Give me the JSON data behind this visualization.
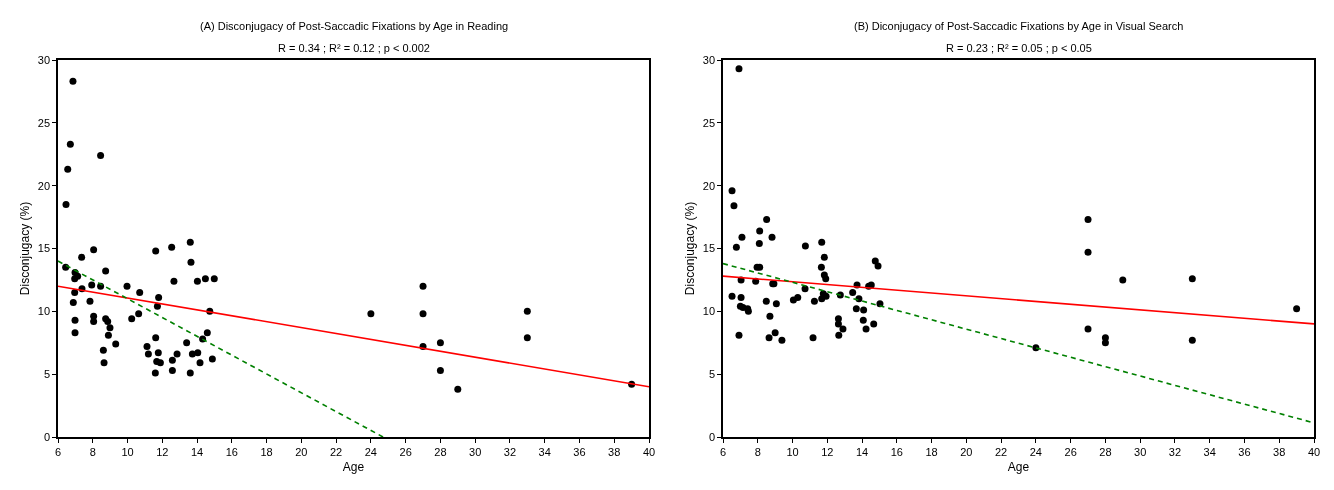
{
  "chart_data": [
    {
      "type": "scatter",
      "title": "(A) Disconjugacy of Post-Saccadic Fixations by Age in Reading",
      "subtitle": "R = 0.34 ; R² = 0.12 ; p < 0.002",
      "xlabel": "Age",
      "ylabel": "Disconjugacy (%)",
      "xlim": [
        6,
        40
      ],
      "ylim": [
        0,
        30
      ],
      "xticks": [
        6,
        8,
        10,
        12,
        14,
        16,
        18,
        20,
        22,
        24,
        26,
        28,
        30,
        32,
        34,
        36,
        38,
        40
      ],
      "yticks": [
        0,
        5,
        10,
        15,
        20,
        25,
        30
      ],
      "series": [
        {
          "type": "scatter",
          "marker": "circle",
          "color": "#000000",
          "x": [
            6.86,
            6.71,
            6.56,
            6.46,
            8.45,
            6.44,
            6.98,
            7.13,
            6.96,
            7.36,
            8.05,
            8.74,
            7.38,
            6.96,
            6.88,
            7.94,
            8.45,
            7.84,
            6.98,
            6.98,
            8.05,
            8.05,
            8.74,
            8.86,
            8.99,
            8.9,
            9.32,
            8.61,
            8.65,
            9.97,
            10.7,
            10.24,
            10.64,
            11.62,
            11.79,
            11.72,
            12.54,
            12.67,
            13.61,
            13.65,
            14.02,
            14.48,
            14.99,
            14.73,
            14.59,
            14.32,
            13.4,
            11.62,
            11.12,
            11.2,
            11.77,
            11.68,
            11.89,
            11.6,
            12.58,
            12.85,
            12.58,
            13.73,
            14.04,
            14.17,
            13.61,
            14.88,
            24,
            27,
            27,
            27,
            28,
            28,
            29,
            33,
            33,
            39
          ],
          "values": [
            28.3,
            23.3,
            21.3,
            18.5,
            22.4,
            13.5,
            13.1,
            12.8,
            12.6,
            14.3,
            14.9,
            13.2,
            11.8,
            11.5,
            10.7,
            12.1,
            12.0,
            10.8,
            9.3,
            8.3,
            9.6,
            9.2,
            9.4,
            9.2,
            8.7,
            8.1,
            7.4,
            6.9,
            5.9,
            12.0,
            11.5,
            9.4,
            9.8,
            14.8,
            11.1,
            10.4,
            15.1,
            12.4,
            15.5,
            13.9,
            12.4,
            12.6,
            12.6,
            10.0,
            8.3,
            7.8,
            7.5,
            7.9,
            7.2,
            6.6,
            6.7,
            6.0,
            5.9,
            5.1,
            6.1,
            6.6,
            5.3,
            6.6,
            6.7,
            5.9,
            5.1,
            6.2,
            9.8,
            12.0,
            9.8,
            7.2,
            7.5,
            5.3,
            3.8,
            10.0,
            7.9,
            4.2
          ]
        },
        {
          "type": "line",
          "line_style": "solid",
          "color": "#ff0000",
          "x": [
            6,
            40
          ],
          "values": [
            12.0,
            4.0
          ]
        },
        {
          "type": "line",
          "line_style": "dashed",
          "color": "#008000",
          "x": [
            6,
            24.7
          ],
          "values": [
            14.0,
            0
          ]
        }
      ]
    },
    {
      "type": "scatter",
      "title": "(B) Diconjugacy of Post-Saccadic Fixations by Age in Visual Search",
      "subtitle": "R = 0.23 ; R² = 0.05 ; p < 0.05",
      "xlabel": "Age",
      "ylabel": "Disconjugacy (%)",
      "xlim": [
        6,
        40
      ],
      "ylim": [
        0,
        30
      ],
      "xticks": [
        6,
        8,
        10,
        12,
        14,
        16,
        18,
        20,
        22,
        24,
        26,
        28,
        30,
        32,
        34,
        36,
        38,
        40
      ],
      "yticks": [
        0,
        5,
        10,
        15,
        20,
        25,
        30
      ],
      "series": [
        {
          "type": "scatter",
          "marker": "circle",
          "color": "#000000",
          "x": [
            6.92,
            6.52,
            6.63,
            8.51,
            8.11,
            8.82,
            7.09,
            6.77,
            8.09,
            10.74,
            11.68,
            11.83,
            11.66,
            11.83,
            11.91,
            7.96,
            8.11,
            7.04,
            7.88,
            8.86,
            8.93,
            14.76,
            14.92,
            6.52,
            7.04,
            7.0,
            7.15,
            7.42,
            7.46,
            8.49,
            8.7,
            9.07,
            6.92,
            8.65,
            9.0,
            9.39,
            10.05,
            10.3,
            10.72,
            11.26,
            11.68,
            11.93,
            11.77,
            12.75,
            11.18,
            12.64,
            12.64,
            12.9,
            12.66,
            13.46,
            13.71,
            13.82,
            13.67,
            14.09,
            14.07,
            14.23,
            14.38,
            14.53,
            14.67,
            15.03,
            27,
            27,
            29,
            33,
            39,
            27,
            28,
            28,
            33,
            24
          ],
          "values": [
            29.3,
            19.6,
            18.4,
            17.3,
            16.4,
            15.9,
            15.9,
            15.1,
            15.4,
            15.2,
            15.5,
            14.3,
            13.5,
            12.9,
            12.6,
            13.5,
            13.5,
            12.5,
            12.4,
            12.2,
            12.2,
            14.0,
            13.6,
            11.2,
            11.1,
            10.4,
            10.3,
            10.2,
            10.0,
            10.8,
            9.6,
            10.6,
            8.1,
            7.9,
            8.3,
            7.7,
            10.9,
            11.1,
            11.8,
            10.8,
            11.0,
            11.2,
            11.4,
            11.3,
            7.9,
            9.4,
            9.0,
            8.6,
            8.1,
            11.5,
            12.1,
            11.0,
            10.2,
            10.1,
            9.3,
            8.6,
            12.0,
            12.1,
            9.0,
            10.6,
            17.3,
            14.7,
            12.5,
            12.6,
            10.2,
            8.6,
            7.9,
            7.5,
            7.7,
            7.1
          ]
        },
        {
          "type": "line",
          "line_style": "solid",
          "color": "#ff0000",
          "x": [
            6,
            40
          ],
          "values": [
            12.8,
            9.0
          ]
        },
        {
          "type": "line",
          "line_style": "dashed",
          "color": "#008000",
          "x": [
            6,
            39.8
          ],
          "values": [
            13.8,
            1.2
          ]
        }
      ]
    }
  ]
}
